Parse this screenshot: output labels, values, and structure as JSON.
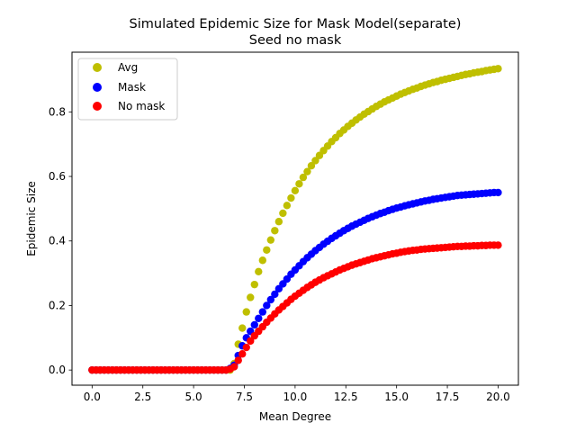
{
  "chart_data": {
    "type": "scatter",
    "title": "Simulated Epidemic Size for Mask Model(separate)",
    "subtitle": "Seed no mask",
    "xlabel": "Mean Degree",
    "ylabel": "Epidemic Size",
    "xlim": [
      -0.99,
      21.0
    ],
    "ylim": [
      -0.047,
      0.985
    ],
    "xticks": [
      0.0,
      2.5,
      5.0,
      7.5,
      10.0,
      12.5,
      15.0,
      17.5,
      20.0
    ],
    "xtick_labels": [
      "0.0",
      "2.5",
      "5.0",
      "7.5",
      "10.0",
      "12.5",
      "15.0",
      "17.5",
      "20.0"
    ],
    "yticks": [
      0.0,
      0.2,
      0.4,
      0.6,
      0.8
    ],
    "ytick_labels": [
      "0.0",
      "0.2",
      "0.4",
      "0.6",
      "0.8"
    ],
    "grid": false,
    "legend_position": "upper-left",
    "x": [
      0.0,
      0.2,
      0.4,
      0.6,
      0.8,
      1.0,
      1.2,
      1.4,
      1.6,
      1.8,
      2.0,
      2.2,
      2.4,
      2.6,
      2.8,
      3.0,
      3.2,
      3.4,
      3.6,
      3.8,
      4.0,
      4.2,
      4.4,
      4.6,
      4.8,
      5.0,
      5.2,
      5.4,
      5.6,
      5.8,
      6.0,
      6.2,
      6.4,
      6.6,
      6.8,
      7.0,
      7.2,
      7.4,
      7.6,
      7.8,
      8.0,
      8.2,
      8.4,
      8.6,
      8.8,
      9.0,
      9.2,
      9.4,
      9.6,
      9.8,
      10.0,
      10.2,
      10.4,
      10.6,
      10.8,
      11.0,
      11.2,
      11.4,
      11.6,
      11.8,
      12.0,
      12.2,
      12.4,
      12.6,
      12.8,
      13.0,
      13.2,
      13.4,
      13.6,
      13.8,
      14.0,
      14.2,
      14.4,
      14.6,
      14.8,
      15.0,
      15.2,
      15.4,
      15.6,
      15.8,
      16.0,
      16.2,
      16.4,
      16.6,
      16.8,
      17.0,
      17.2,
      17.4,
      17.6,
      17.8,
      18.0,
      18.2,
      18.4,
      18.6,
      18.8,
      19.0,
      19.2,
      19.4,
      19.6,
      19.8,
      20.0
    ],
    "series": [
      {
        "name": "Avg",
        "color": "#bfbf00",
        "values": [
          0.0,
          0.0,
          0.0,
          0.0,
          0.0,
          0.0,
          0.0,
          0.0,
          0.0,
          0.0,
          0.0,
          0.0,
          0.0,
          0.0,
          0.0,
          0.0,
          0.0,
          0.0,
          0.0,
          0.0,
          0.0,
          0.0,
          0.0,
          0.0,
          0.0,
          0.0,
          0.0,
          0.0,
          0.0,
          0.0,
          0.0,
          0.0,
          0.0,
          0.0,
          0.0,
          0.02,
          0.08,
          0.13,
          0.18,
          0.225,
          0.265,
          0.305,
          0.34,
          0.372,
          0.403,
          0.432,
          0.46,
          0.486,
          0.51,
          0.533,
          0.556,
          0.577,
          0.597,
          0.615,
          0.633,
          0.649,
          0.665,
          0.68,
          0.694,
          0.708,
          0.72,
          0.733,
          0.744,
          0.755,
          0.765,
          0.775,
          0.784,
          0.793,
          0.801,
          0.809,
          0.817,
          0.824,
          0.831,
          0.837,
          0.843,
          0.849,
          0.855,
          0.86,
          0.865,
          0.87,
          0.874,
          0.879,
          0.883,
          0.887,
          0.891,
          0.894,
          0.898,
          0.901,
          0.904,
          0.907,
          0.91,
          0.913,
          0.916,
          0.918,
          0.921,
          0.923,
          0.925,
          0.928,
          0.93,
          0.932,
          0.934
        ]
      },
      {
        "name": "Mask",
        "color": "#0000ff",
        "values": [
          0.0,
          0.0,
          0.0,
          0.0,
          0.0,
          0.0,
          0.0,
          0.0,
          0.0,
          0.0,
          0.0,
          0.0,
          0.0,
          0.0,
          0.0,
          0.0,
          0.0,
          0.0,
          0.0,
          0.0,
          0.0,
          0.0,
          0.0,
          0.0,
          0.0,
          0.0,
          0.0,
          0.0,
          0.0,
          0.0,
          0.0,
          0.0,
          0.0,
          0.0,
          0.005,
          0.015,
          0.045,
          0.075,
          0.1,
          0.12,
          0.14,
          0.16,
          0.18,
          0.2,
          0.218,
          0.235,
          0.252,
          0.267,
          0.282,
          0.297,
          0.31,
          0.323,
          0.336,
          0.348,
          0.359,
          0.37,
          0.38,
          0.39,
          0.399,
          0.408,
          0.416,
          0.424,
          0.432,
          0.439,
          0.446,
          0.452,
          0.458,
          0.464,
          0.47,
          0.475,
          0.48,
          0.485,
          0.489,
          0.494,
          0.498,
          0.502,
          0.505,
          0.509,
          0.512,
          0.515,
          0.518,
          0.521,
          0.524,
          0.526,
          0.529,
          0.531,
          0.533,
          0.535,
          0.537,
          0.539,
          0.541,
          0.542,
          0.543,
          0.544,
          0.545,
          0.546,
          0.547,
          0.548,
          0.549,
          0.55,
          0.55
        ]
      },
      {
        "name": "No mask",
        "color": "#ff0000",
        "values": [
          0.0,
          0.0,
          0.0,
          0.0,
          0.0,
          0.0,
          0.0,
          0.0,
          0.0,
          0.0,
          0.0,
          0.0,
          0.0,
          0.0,
          0.0,
          0.0,
          0.0,
          0.0,
          0.0,
          0.0,
          0.0,
          0.0,
          0.0,
          0.0,
          0.0,
          0.0,
          0.0,
          0.0,
          0.0,
          0.0,
          0.0,
          0.0,
          0.0,
          0.0,
          0.003,
          0.01,
          0.03,
          0.05,
          0.07,
          0.09,
          0.106,
          0.12,
          0.134,
          0.148,
          0.161,
          0.174,
          0.186,
          0.197,
          0.208,
          0.219,
          0.229,
          0.238,
          0.247,
          0.256,
          0.264,
          0.272,
          0.279,
          0.286,
          0.292,
          0.298,
          0.304,
          0.31,
          0.315,
          0.32,
          0.325,
          0.329,
          0.333,
          0.337,
          0.341,
          0.345,
          0.348,
          0.351,
          0.354,
          0.357,
          0.36,
          0.362,
          0.365,
          0.367,
          0.369,
          0.371,
          0.372,
          0.374,
          0.375,
          0.376,
          0.377,
          0.378,
          0.379,
          0.38,
          0.381,
          0.382,
          0.383,
          0.383,
          0.384,
          0.384,
          0.385,
          0.385,
          0.386,
          0.386,
          0.387,
          0.387,
          0.387
        ]
      }
    ]
  }
}
